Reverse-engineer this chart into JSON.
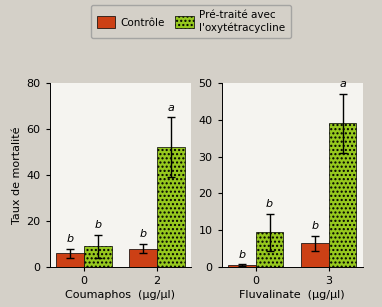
{
  "background_color": "#d4d0c8",
  "plot_bg_color": "#f5f4f0",
  "left_panel": {
    "title": "Coumaphos  (μg/μl)",
    "ylim": [
      0,
      80
    ],
    "yticks": [
      0,
      20,
      40,
      60,
      80
    ],
    "groups": [
      "0",
      "2"
    ],
    "control_values": [
      6,
      8
    ],
    "control_errors": [
      2,
      2
    ],
    "treated_values": [
      9,
      52
    ],
    "treated_errors": [
      5,
      13
    ],
    "control_labels": [
      "b",
      "b"
    ],
    "treated_labels": [
      "b",
      "a"
    ]
  },
  "right_panel": {
    "title": "Fluvalinate  (μg/μl)",
    "ylim": [
      0,
      50
    ],
    "yticks": [
      0,
      10,
      20,
      30,
      40,
      50
    ],
    "groups": [
      "0",
      "3"
    ],
    "control_values": [
      0.5,
      6.5
    ],
    "control_errors": [
      0.3,
      2
    ],
    "treated_values": [
      9.5,
      39
    ],
    "treated_errors": [
      5,
      8
    ],
    "control_labels": [
      "b",
      "b"
    ],
    "treated_labels": [
      "b",
      "a"
    ]
  },
  "ylabel": "Taux de mortalité",
  "control_color": "#cc4015",
  "treated_color": "#96c81e",
  "legend_control": "Contrôle",
  "legend_treated": "Pré-traité avec\nl'oxytétracycline",
  "bar_width": 0.38,
  "hatch": "...."
}
